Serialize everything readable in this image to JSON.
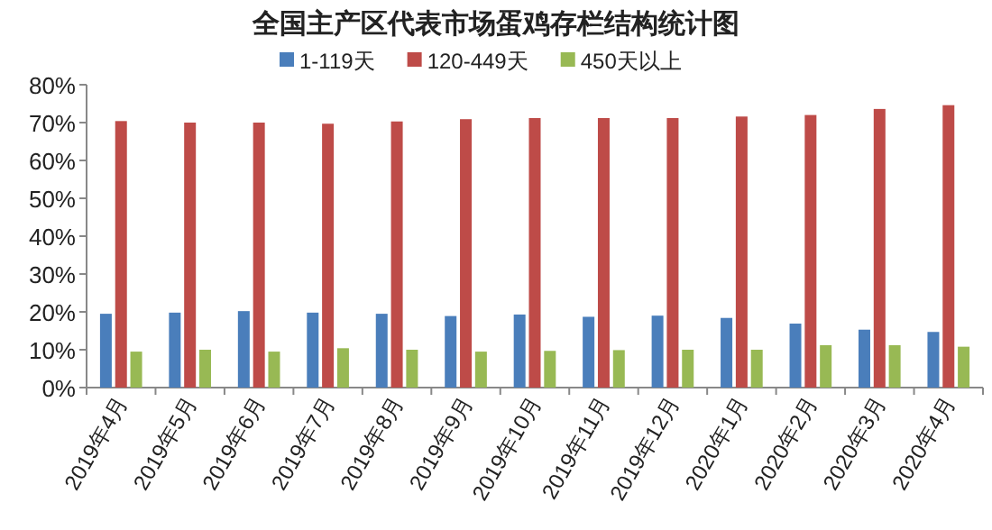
{
  "chart_data": {
    "type": "bar",
    "title": "全国主产区代表市场蛋鸡存栏结构统计图",
    "categories": [
      "2019年4月",
      "2019年5月",
      "2019年6月",
      "2019年7月",
      "2019年8月",
      "2019年9月",
      "2019年10月",
      "2019年11月",
      "2019年12月",
      "2020年1月",
      "2020年2月",
      "2020年3月",
      "2020年4月"
    ],
    "series": [
      {
        "name": "1-119天",
        "color": "#4a7ebb",
        "values": [
          19.5,
          19.8,
          20.2,
          19.8,
          19.5,
          18.9,
          19.3,
          18.7,
          19.0,
          18.4,
          16.9,
          15.3,
          14.7
        ]
      },
      {
        "name": "120-449天",
        "color": "#be4b48",
        "values": [
          70.4,
          70.0,
          70.0,
          69.7,
          70.3,
          70.9,
          71.2,
          71.2,
          71.2,
          71.6,
          72.0,
          73.6,
          74.6
        ]
      },
      {
        "name": "450天以上",
        "color": "#98b954",
        "values": [
          9.5,
          10.0,
          9.5,
          10.4,
          10.0,
          9.5,
          9.7,
          9.9,
          10.0,
          10.0,
          11.2,
          11.2,
          10.8
        ]
      }
    ],
    "ylim": [
      0,
      80
    ],
    "yticks": [
      {
        "value": 0,
        "label": "0%"
      },
      {
        "value": 10,
        "label": "10%"
      },
      {
        "value": 20,
        "label": "20%"
      },
      {
        "value": 30,
        "label": "30%"
      },
      {
        "value": 40,
        "label": "40%"
      },
      {
        "value": 50,
        "label": "50%"
      },
      {
        "value": 60,
        "label": "60%"
      },
      {
        "value": 70,
        "label": "70%"
      },
      {
        "value": 80,
        "label": "80%"
      }
    ],
    "grid": false,
    "legend": "top"
  }
}
